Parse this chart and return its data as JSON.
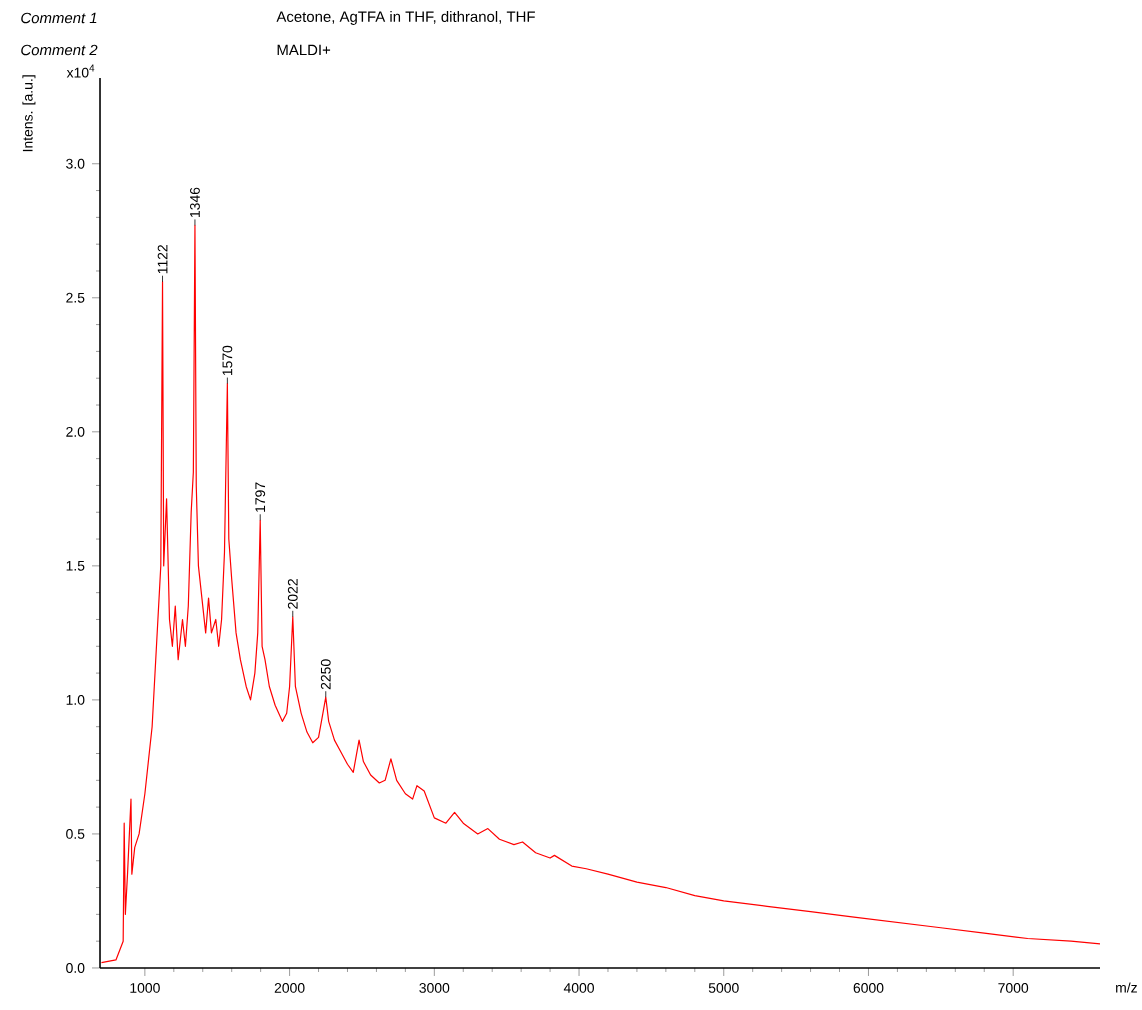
{
  "chart_data": {
    "type": "line",
    "xlabel": "m/z",
    "ylabel": "Intens. [a.u.]",
    "annotations": [
      "Comment 1",
      "Acetone, AgTFA in THF, dithranol, THF",
      "Comment 2",
      "MALDI+",
      "x10$^{4}$",
      {
        "text": "1122",
        "x": 1122,
        "y": 2.56
      },
      {
        "text": "1346",
        "x": 1346,
        "y": 2.77
      },
      {
        "text": "1570",
        "x": 1570,
        "y": 2.18
      },
      {
        "text": "1797",
        "x": 1797,
        "y": 1.67
      },
      {
        "text": "2022",
        "x": 2022,
        "y": 1.31
      },
      {
        "text": "2250",
        "x": 2250,
        "y": 1.01
      }
    ],
    "xlim": [
      690,
      7600
    ],
    "ylim": [
      0,
      3.32
    ],
    "xticks": [
      1000,
      2000,
      3000,
      4000,
      5000,
      6000,
      7000
    ],
    "yticks": [
      {
        "value": 0,
        "label": "0.0"
      },
      {
        "value": 0.5,
        "label": "0.5"
      },
      {
        "value": 1,
        "label": "1.0"
      },
      {
        "value": 1.5,
        "label": "1.5"
      },
      {
        "value": 2,
        "label": "2.0"
      },
      {
        "value": 2.5,
        "label": "2.5"
      },
      {
        "value": 3,
        "label": "3.0"
      }
    ],
    "grid": false,
    "marker": "none",
    "line_style": "solid",
    "series": [
      {
        "color": "#ff0000",
        "x": [
          700,
          800,
          850,
          857,
          865,
          880,
          904,
          910,
          930,
          960,
          1000,
          1050,
          1090,
          1110,
          1122,
          1130,
          1150,
          1170,
          1190,
          1210,
          1230,
          1260,
          1280,
          1300,
          1320,
          1335,
          1346,
          1355,
          1370,
          1400,
          1420,
          1440,
          1460,
          1490,
          1510,
          1530,
          1550,
          1570,
          1580,
          1600,
          1630,
          1660,
          1700,
          1730,
          1760,
          1780,
          1797,
          1810,
          1830,
          1860,
          1900,
          1950,
          1980,
          2000,
          2022,
          2040,
          2080,
          2120,
          2160,
          2200,
          2230,
          2250,
          2270,
          2310,
          2360,
          2400,
          2440,
          2480,
          2510,
          2560,
          2620,
          2660,
          2700,
          2740,
          2800,
          2850,
          2880,
          2930,
          3000,
          3080,
          3140,
          3200,
          3300,
          3370,
          3450,
          3550,
          3610,
          3700,
          3800,
          3830,
          3950,
          4050,
          4200,
          4400,
          4600,
          4800,
          5000,
          5300,
          5600,
          5900,
          6200,
          6500,
          6800,
          7100,
          7400,
          7600
        ],
        "values": [
          0.02,
          0.03,
          0.1,
          0.54,
          0.2,
          0.35,
          0.63,
          0.35,
          0.45,
          0.5,
          0.65,
          0.9,
          1.3,
          1.5,
          2.56,
          1.5,
          1.75,
          1.3,
          1.2,
          1.35,
          1.15,
          1.3,
          1.2,
          1.35,
          1.7,
          1.85,
          2.77,
          1.8,
          1.5,
          1.35,
          1.25,
          1.38,
          1.25,
          1.3,
          1.2,
          1.3,
          1.55,
          2.18,
          1.6,
          1.45,
          1.25,
          1.15,
          1.05,
          1.0,
          1.1,
          1.25,
          1.67,
          1.2,
          1.15,
          1.05,
          0.98,
          0.92,
          0.95,
          1.05,
          1.31,
          1.05,
          0.95,
          0.88,
          0.84,
          0.86,
          0.95,
          1.01,
          0.92,
          0.85,
          0.8,
          0.76,
          0.73,
          0.85,
          0.77,
          0.72,
          0.69,
          0.7,
          0.78,
          0.7,
          0.65,
          0.63,
          0.68,
          0.66,
          0.56,
          0.54,
          0.58,
          0.54,
          0.5,
          0.52,
          0.48,
          0.46,
          0.47,
          0.43,
          0.41,
          0.42,
          0.38,
          0.37,
          0.35,
          0.32,
          0.3,
          0.27,
          0.25,
          0.23,
          0.21,
          0.19,
          0.17,
          0.15,
          0.13,
          0.11,
          0.1,
          0.09
        ]
      }
    ]
  }
}
